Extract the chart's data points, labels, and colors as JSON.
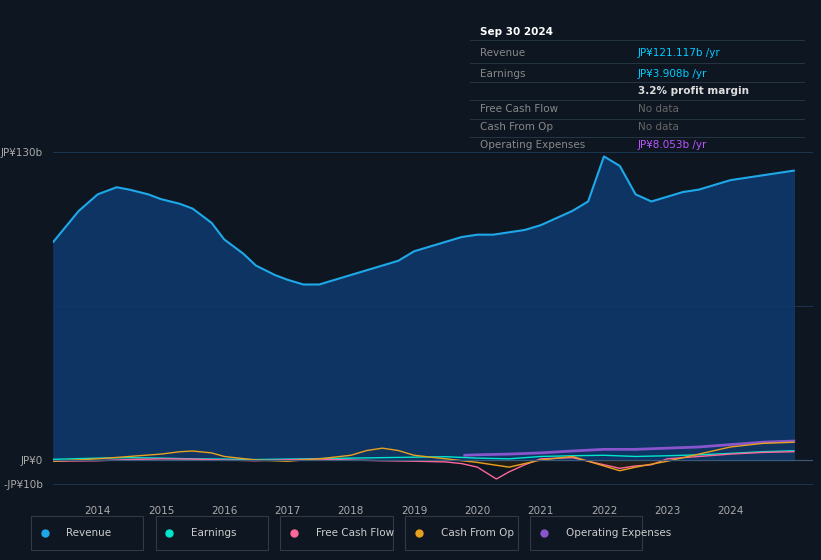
{
  "bg_color": "#0e1621",
  "plot_bg_color": "#0e1621",
  "plot_bg_upper": "#0a1628",
  "grid_color": "#1e3a5f",
  "ylim": [
    -15,
    142
  ],
  "xlim_min": 2013.3,
  "xlim_max": 2025.3,
  "ytick_positions": [
    130,
    65,
    0,
    -10
  ],
  "ytick_labels": [
    "JP¥130b",
    "",
    "JP¥0",
    "-JP¥10b"
  ],
  "xtick_positions": [
    2014,
    2015,
    2016,
    2017,
    2018,
    2019,
    2020,
    2021,
    2022,
    2023,
    2024
  ],
  "revenue": {
    "x": [
      2013.3,
      2013.7,
      2014.0,
      2014.3,
      2014.5,
      2014.8,
      2015.0,
      2015.3,
      2015.5,
      2015.8,
      2016.0,
      2016.3,
      2016.5,
      2016.8,
      2017.0,
      2017.25,
      2017.5,
      2017.75,
      2018.0,
      2018.25,
      2018.5,
      2018.75,
      2019.0,
      2019.25,
      2019.5,
      2019.75,
      2020.0,
      2020.25,
      2020.5,
      2020.75,
      2021.0,
      2021.25,
      2021.5,
      2021.75,
      2022.0,
      2022.25,
      2022.5,
      2022.75,
      2023.0,
      2023.25,
      2023.5,
      2023.75,
      2024.0,
      2024.25,
      2024.5,
      2024.75,
      2025.0
    ],
    "y": [
      92,
      105,
      112,
      115,
      114,
      112,
      110,
      108,
      106,
      100,
      93,
      87,
      82,
      78,
      76,
      74,
      74,
      76,
      78,
      80,
      82,
      84,
      88,
      90,
      92,
      94,
      95,
      95,
      96,
      97,
      99,
      102,
      105,
      109,
      128,
      124,
      112,
      109,
      111,
      113,
      114,
      116,
      118,
      119,
      120,
      121,
      122
    ],
    "color": "#1fa8e8",
    "fill_color": "#0d3a6e",
    "label": "Revenue"
  },
  "earnings": {
    "x": [
      2013.3,
      2014.0,
      2014.5,
      2015.0,
      2015.5,
      2016.0,
      2016.5,
      2017.0,
      2017.5,
      2018.0,
      2018.5,
      2019.0,
      2019.5,
      2020.0,
      2020.5,
      2021.0,
      2021.5,
      2022.0,
      2022.5,
      2023.0,
      2023.5,
      2024.0,
      2024.5,
      2025.0
    ],
    "y": [
      0.3,
      0.8,
      1.0,
      0.8,
      0.5,
      0.4,
      0.2,
      0.4,
      0.6,
      0.8,
      1.0,
      1.2,
      1.4,
      0.8,
      0.5,
      1.5,
      1.8,
      2.0,
      1.5,
      1.8,
      2.2,
      2.8,
      3.5,
      3.9
    ],
    "color": "#00e5cc",
    "label": "Earnings"
  },
  "free_cash_flow": {
    "x": [
      2013.3,
      2014.0,
      2014.5,
      2015.0,
      2015.5,
      2016.0,
      2016.5,
      2017.0,
      2017.5,
      2018.0,
      2018.5,
      2019.0,
      2019.5,
      2019.75,
      2020.0,
      2020.15,
      2020.3,
      2020.5,
      2020.75,
      2021.0,
      2021.5,
      2022.0,
      2022.25,
      2022.5,
      2022.75,
      2023.0,
      2023.5,
      2024.0,
      2024.5,
      2025.0
    ],
    "y": [
      -0.5,
      -0.3,
      0.2,
      0.5,
      0.4,
      0.0,
      -0.3,
      0.1,
      0.4,
      0.0,
      -0.3,
      -0.5,
      -0.8,
      -1.5,
      -3.0,
      -5.5,
      -8.0,
      -5.0,
      -2.0,
      0.5,
      1.0,
      -2.0,
      -3.5,
      -2.5,
      -2.0,
      0.5,
      1.5,
      2.5,
      3.2,
      3.5
    ],
    "color": "#ff6699",
    "label": "Free Cash Flow"
  },
  "cash_from_op": {
    "x": [
      2013.3,
      2014.0,
      2014.5,
      2015.0,
      2015.3,
      2015.5,
      2015.8,
      2016.0,
      2016.5,
      2017.0,
      2017.5,
      2018.0,
      2018.25,
      2018.5,
      2018.75,
      2019.0,
      2019.5,
      2020.0,
      2020.5,
      2021.0,
      2021.5,
      2022.0,
      2022.25,
      2022.5,
      2023.0,
      2023.5,
      2024.0,
      2024.5,
      2025.0
    ],
    "y": [
      -0.5,
      0.5,
      1.5,
      2.5,
      3.5,
      3.8,
      3.0,
      1.5,
      0.0,
      -0.5,
      0.5,
      2.0,
      4.0,
      5.0,
      4.0,
      2.0,
      0.5,
      -1.0,
      -3.0,
      0.0,
      1.5,
      -2.5,
      -4.5,
      -3.0,
      -0.5,
      2.5,
      5.5,
      7.0,
      7.5
    ],
    "color": "#e8a020",
    "label": "Cash From Op"
  },
  "operating_expenses": {
    "x": [
      2019.8,
      2020.0,
      2020.5,
      2021.0,
      2021.5,
      2022.0,
      2022.5,
      2023.0,
      2023.5,
      2024.0,
      2024.5,
      2025.0
    ],
    "y": [
      2.0,
      2.2,
      2.5,
      3.0,
      3.8,
      4.5,
      4.5,
      5.0,
      5.5,
      6.5,
      7.5,
      8.0
    ],
    "color": "#8855cc",
    "label": "Operating Expenses"
  },
  "legend_items": [
    {
      "label": "Revenue",
      "color": "#1fa8e8"
    },
    {
      "label": "Earnings",
      "color": "#00e5cc"
    },
    {
      "label": "Free Cash Flow",
      "color": "#ff6699"
    },
    {
      "label": "Cash From Op",
      "color": "#e8a020"
    },
    {
      "label": "Operating Expenses",
      "color": "#8855cc"
    }
  ],
  "tooltip": {
    "title": "Sep 30 2024",
    "rows": [
      {
        "label": "Revenue",
        "value": "JP¥121.117b /yr",
        "value_color": "#00ccff"
      },
      {
        "label": "Earnings",
        "value": "JP¥3.908b /yr",
        "value_color": "#00ccff"
      },
      {
        "label": "",
        "value": "3.2% profit margin",
        "value_color": "#ffffff",
        "bold": true
      },
      {
        "label": "Free Cash Flow",
        "value": "No data",
        "value_color": "#777777"
      },
      {
        "label": "Cash From Op",
        "value": "No data",
        "value_color": "#777777"
      },
      {
        "label": "Operating Expenses",
        "value": "JP¥8.053b /yr",
        "value_color": "#bb55ff"
      }
    ]
  }
}
